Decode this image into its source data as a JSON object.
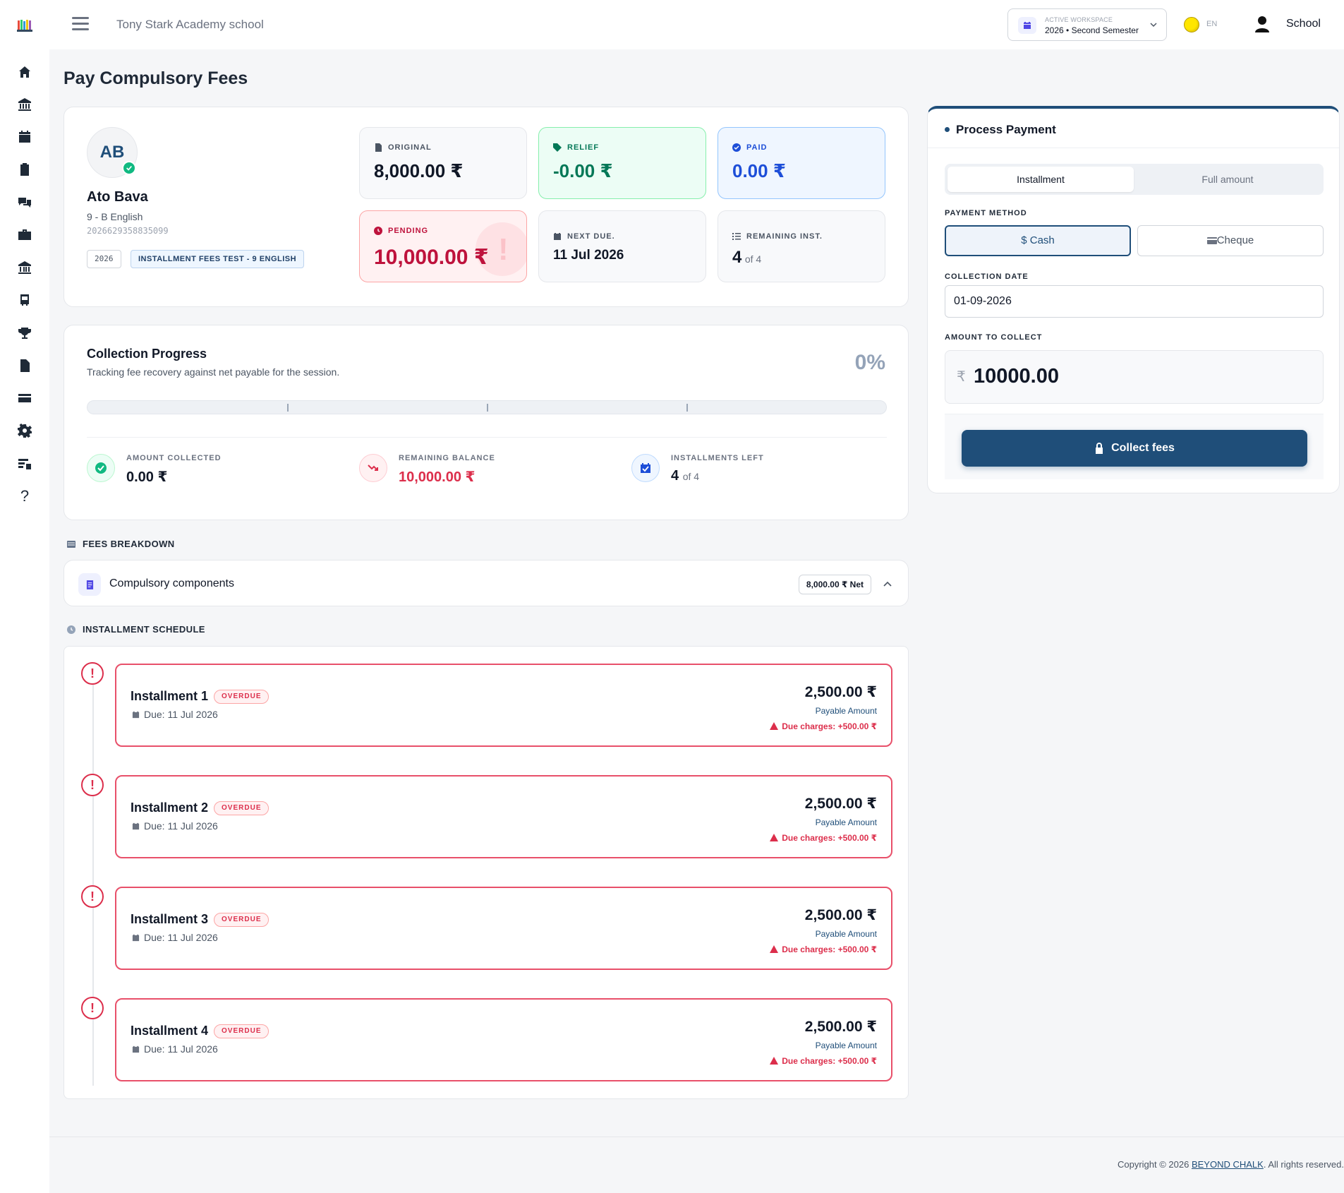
{
  "header": {
    "school_name": "Tony Stark Academy school",
    "workspace_label": "ACTIVE WORKSPACE",
    "workspace_value": "2026 • Second Semester",
    "language": "EN",
    "user_name": "School"
  },
  "sidebar": {
    "items": [
      "home-icon",
      "bank-icon",
      "calendar-icon",
      "clipboard-icon",
      "chat-icon",
      "briefcase-icon",
      "institution-icon",
      "bus-icon",
      "trophy-icon",
      "document-icon",
      "card-icon",
      "gear-icon",
      "reports-icon",
      "help-icon"
    ]
  },
  "page_title": "Pay Compulsory Fees",
  "student": {
    "initials": "AB",
    "name": "Ato Bava",
    "class": "9 - B English",
    "id": "2026629358835099",
    "year_tag": "2026",
    "plan_tag": "INSTALLMENT FEES TEST - 9 ENGLISH"
  },
  "stats": {
    "original": {
      "label": "ORIGINAL",
      "value": "8,000.00 ₹"
    },
    "relief": {
      "label": "RELIEF",
      "value": "-0.00 ₹"
    },
    "paid": {
      "label": "PAID",
      "value": "0.00 ₹"
    },
    "pending": {
      "label": "PENDING",
      "value": "10,000.00 ₹"
    },
    "next_due": {
      "label": "NEXT DUE.",
      "value": "11 Jul 2026"
    },
    "remaining": {
      "label": "REMAINING INST.",
      "value": "4",
      "of": "of 4"
    }
  },
  "progress": {
    "title": "Collection Progress",
    "subtitle": "Tracking fee recovery against net payable for the session.",
    "percent_label": "0%",
    "percent": 0,
    "collected_label": "AMOUNT COLLECTED",
    "collected_value": "0.00 ₹",
    "remaining_label": "REMAINING BALANCE",
    "remaining_value": "10,000.00 ₹",
    "installments_label": "INSTALLMENTS LEFT",
    "installments_value": "4",
    "installments_of": "of 4"
  },
  "breakdown": {
    "heading": "FEES BREAKDOWN",
    "label": "Compulsory components",
    "badge": "8,000.00 ₹ Net"
  },
  "schedule": {
    "heading": "INSTALLMENT SCHEDULE",
    "items": [
      {
        "title": "Installment 1",
        "status": "OVERDUE",
        "due": "Due: 11 Jul 2026",
        "amount": "2,500.00 ₹",
        "payable_label": "Payable Amount",
        "charges": "Due charges: +500.00 ₹"
      },
      {
        "title": "Installment 2",
        "status": "OVERDUE",
        "due": "Due: 11 Jul 2026",
        "amount": "2,500.00 ₹",
        "payable_label": "Payable Amount",
        "charges": "Due charges: +500.00 ₹"
      },
      {
        "title": "Installment 3",
        "status": "OVERDUE",
        "due": "Due: 11 Jul 2026",
        "amount": "2,500.00 ₹",
        "payable_label": "Payable Amount",
        "charges": "Due charges: +500.00 ₹"
      },
      {
        "title": "Installment 4",
        "status": "OVERDUE",
        "due": "Due: 11 Jul 2026",
        "amount": "2,500.00 ₹",
        "payable_label": "Payable Amount",
        "charges": "Due charges: +500.00 ₹"
      }
    ]
  },
  "payment": {
    "title": "Process Payment",
    "mode_installment": "Installment",
    "mode_full": "Full amount",
    "method_label": "PAYMENT METHOD",
    "method_cash": "$ Cash",
    "method_cheque": "Cheque",
    "date_label": "COLLECTION DATE",
    "date_value": "01-09-2026",
    "amount_label": "AMOUNT TO COLLECT",
    "currency": "₹",
    "amount_value": "10000.00",
    "collect_button": "Collect fees"
  },
  "footer": {
    "prefix": "Copyright © 2026 ",
    "brand": "BEYOND CHALK",
    "suffix": ". All rights reserved."
  },
  "colors": {
    "primary": "#1f4e79",
    "danger": "#dc2e4b",
    "success": "#10b981",
    "info": "#1d4ed8"
  }
}
